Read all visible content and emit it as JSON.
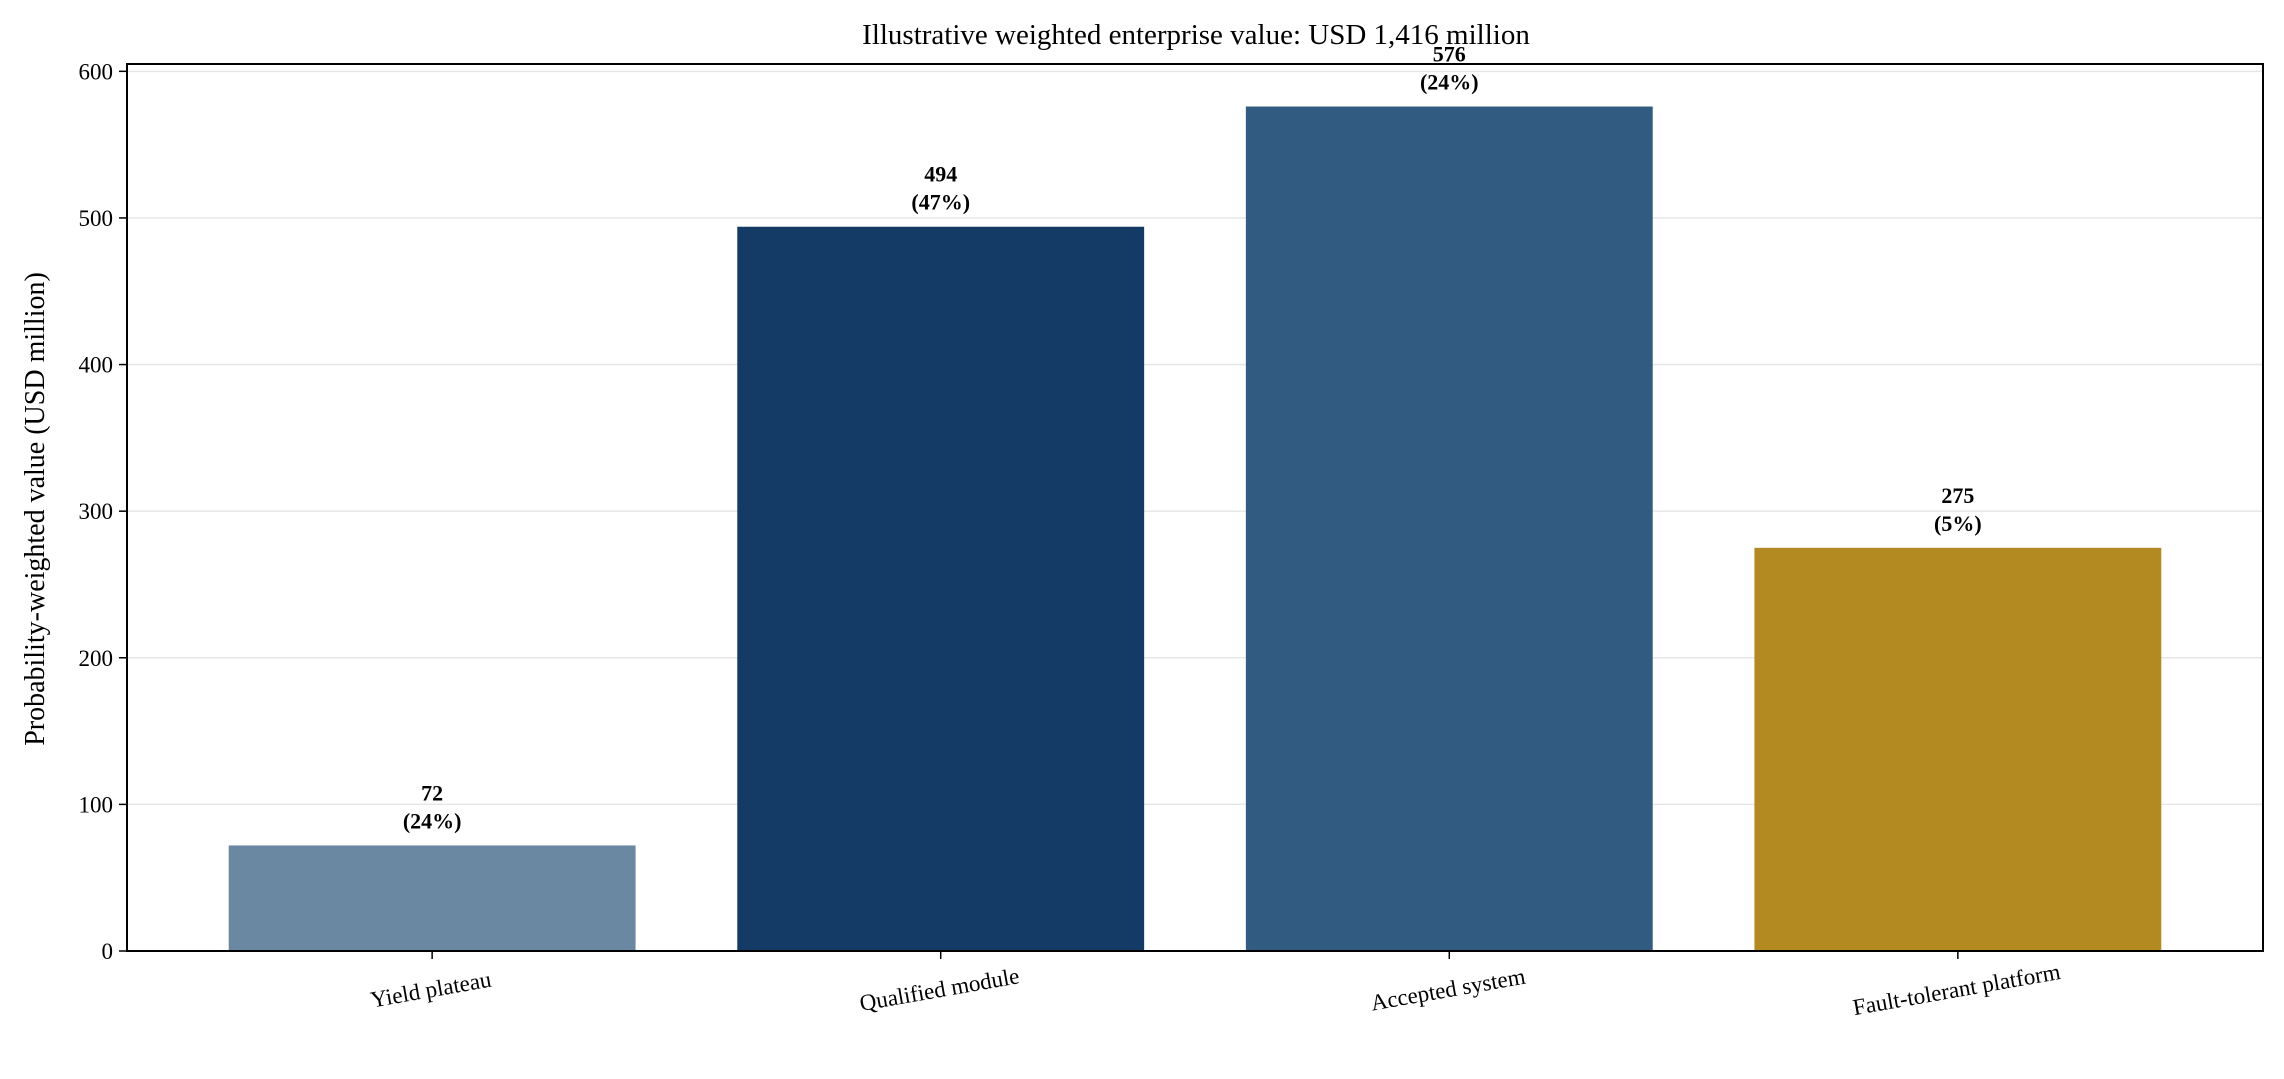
{
  "chart_data": {
    "type": "bar",
    "title": "Illustrative weighted enterprise value: USD 1,416 million",
    "xlabel": "",
    "ylabel": "Probability-weighted value (USD million)",
    "ylim": [
      0,
      605
    ],
    "yticks": [
      0,
      100,
      200,
      300,
      400,
      500,
      600
    ],
    "grid": "horizontal",
    "categories": [
      "Yield plateau",
      "Qualified module",
      "Accepted system",
      "Fault-tolerant platform"
    ],
    "values": [
      72,
      494,
      576,
      275
    ],
    "shares": [
      "(24%)",
      "(47%)",
      "(24%)",
      "(5%)"
    ],
    "colors": [
      "#6b88a3",
      "#143a66",
      "#325b82",
      "#b38a22"
    ]
  }
}
